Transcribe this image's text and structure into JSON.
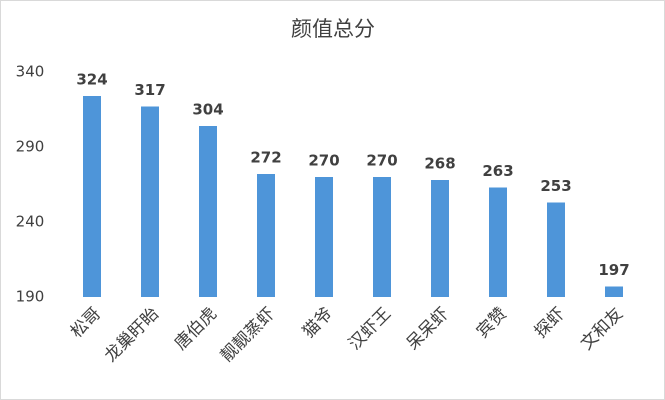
{
  "chart_data": {
    "type": "bar",
    "title": "颜值总分",
    "categories": [
      "松哥",
      "龙巢盱眙",
      "唐伯虎",
      "靓靓蒸虾",
      "猫爷",
      "汉虾王",
      "呆呆虾",
      "宾赞",
      "探虾",
      "文和友"
    ],
    "values": [
      324,
      317,
      304,
      272,
      270,
      270,
      268,
      263,
      253,
      197
    ],
    "color": "#4e95d9",
    "ylim": [
      190,
      340
    ],
    "yticks": [
      190,
      240,
      290,
      340
    ],
    "grid": false
  }
}
